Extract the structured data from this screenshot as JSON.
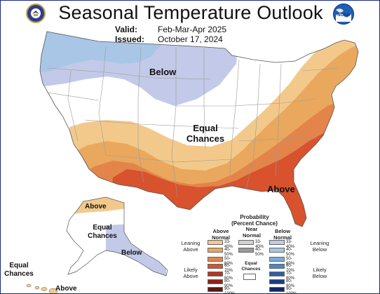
{
  "header": {
    "title": "Seasonal Temperature Outlook",
    "valid_label": "Valid:",
    "valid_value": "Feb-Mar-Apr 2025",
    "issued_label": "Issued:",
    "issued_value": "October 17, 2024"
  },
  "logos": {
    "left": "doc-seal-icon",
    "right": "noaa-logo-icon"
  },
  "map_labels": {
    "below_conus": "Below",
    "equal_conus_1": "Equal",
    "equal_conus_2": "Chances",
    "above_conus": "Above",
    "above_alaska": "Above",
    "equal_alaska_1": "Equal",
    "equal_alaska_2": "Chances",
    "below_alaska": "Below",
    "equal_hawaii_1": "Equal",
    "equal_hawaii_2": "Chances",
    "above_hawaii": "Above"
  },
  "colors": {
    "above_33_40": "#f3c98b",
    "above_40_50": "#e9a85e",
    "above_50_60": "#e3844a",
    "above_60_70": "#d7522d",
    "above_70_80": "#b83520",
    "above_80_90": "#8d2419",
    "above_90_100": "#5d1712",
    "below_33_40": "#c3c9e8",
    "below_40_50": "#a9c6e6",
    "below_50_60": "#79acd9",
    "below_60_70": "#4b87c4",
    "below_70_80": "#2a60a8",
    "below_80_90": "#1d3c85",
    "below_90_100": "#142660",
    "near_33_40": "#d3d3d3",
    "near_40_50": "#9b9b9b"
  },
  "legend": {
    "title_1": "Probability",
    "title_2": "(Percent Chance)",
    "col_above_1": "Above",
    "col_above_2": "Normal",
    "col_near_1": "Near",
    "col_near_2": "Normal",
    "col_below_1": "Below",
    "col_below_2": "Normal",
    "leaning_above_1": "Leaning",
    "leaning_above_2": "Above",
    "leaning_below_1": "Leaning",
    "leaning_below_2": "Below",
    "likely_above_1": "Likely",
    "likely_above_2": "Above",
    "likely_below_1": "Likely",
    "likely_below_2": "Below",
    "equal_1": "Equal",
    "equal_2": "Chances",
    "above_ranges": [
      "33-40%",
      "40-50%",
      "50-60%",
      "60-70%",
      "70-80%",
      "80-90%",
      "90-100%"
    ],
    "near_ranges": [
      "33-40%",
      "40-50%"
    ],
    "below_ranges": [
      "33-40%",
      "40-50%",
      "50-60%",
      "60-70%",
      "70-80%",
      "80-90%",
      "90-100%"
    ]
  }
}
